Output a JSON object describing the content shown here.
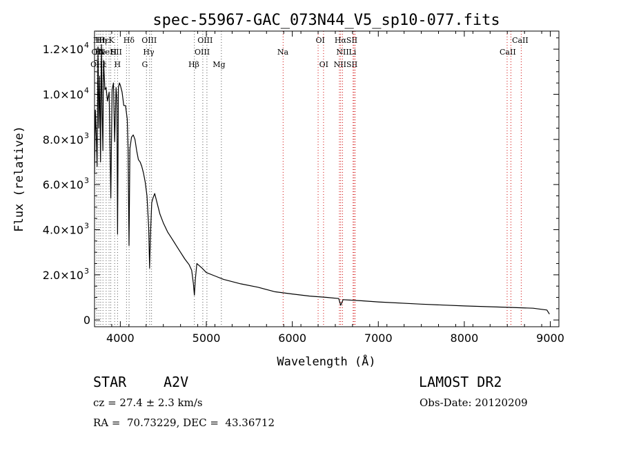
{
  "chart_data": {
    "type": "line",
    "title": "spec-55967-GAC_073N44_V5_sp10-077.fits",
    "xlabel": "Wavelength (Å)",
    "ylabel": "Flux (relative)",
    "xlim": [
      3700,
      9100
    ],
    "ylim": [
      -300,
      12800
    ],
    "x_ticks": [
      4000,
      5000,
      6000,
      7000,
      8000,
      9000
    ],
    "x_tick_labels": [
      "4000",
      "5000",
      "6000",
      "7000",
      "8000",
      "9000"
    ],
    "y_ticks": [
      {
        "value": 0,
        "mant": "0",
        "exp": ""
      },
      {
        "value": 2000,
        "mant": "2.0×10",
        "exp": "3"
      },
      {
        "value": 4000,
        "mant": "4.0×10",
        "exp": "3"
      },
      {
        "value": 6000,
        "mant": "6.0×10",
        "exp": "3"
      },
      {
        "value": 8000,
        "mant": "8.0×10",
        "exp": "3"
      },
      {
        "value": 10000,
        "mant": "1.0×10",
        "exp": "4"
      },
      {
        "value": 12000,
        "mant": "1.2×10",
        "exp": "4"
      }
    ],
    "series": [
      {
        "x": [
          3700,
          3710,
          3720,
          3730,
          3740,
          3750,
          3760,
          3770,
          3780,
          3790,
          3797,
          3805,
          3820,
          3835,
          3850,
          3870,
          3889,
          3905,
          3920,
          3934,
          3950,
          3960,
          3968,
          3978,
          3990,
          4000,
          4020,
          4040,
          4060,
          4080,
          4090,
          4101,
          4112,
          4130,
          4150,
          4170,
          4190,
          4210,
          4230,
          4250,
          4270,
          4290,
          4310,
          4330,
          4340,
          4350,
          4365,
          4380,
          4400,
          4420,
          4440,
          4460,
          4480,
          4500,
          4550,
          4600,
          4650,
          4700,
          4750,
          4800,
          4830,
          4850,
          4861,
          4872,
          4890,
          4920,
          4950,
          5000,
          5100,
          5200,
          5400,
          5600,
          5800,
          6000,
          6200,
          6400,
          6540,
          6563,
          6590,
          6800,
          7000,
          7500,
          8000,
          8500,
          8800,
          8960,
          8990
        ],
        "y": [
          6500,
          9300,
          8200,
          6800,
          12100,
          8500,
          10800,
          7000,
          12200,
          9000,
          7500,
          11500,
          10200,
          10300,
          9700,
          10100,
          5400,
          10200,
          10500,
          7900,
          10300,
          9800,
          3800,
          10300,
          10500,
          10400,
          10100,
          9500,
          9500,
          8900,
          7600,
          3300,
          7600,
          8100,
          8200,
          8000,
          7500,
          7100,
          7000,
          6800,
          6500,
          6100,
          5500,
          4100,
          2300,
          3700,
          5200,
          5400,
          5600,
          5300,
          5000,
          4700,
          4500,
          4300,
          3900,
          3600,
          3300,
          3000,
          2700,
          2450,
          2200,
          1600,
          1100,
          1800,
          2500,
          2400,
          2300,
          2100,
          1950,
          1800,
          1600,
          1450,
          1250,
          1150,
          1060,
          1000,
          950,
          650,
          900,
          850,
          800,
          700,
          620,
          560,
          520,
          440,
          260
        ]
      }
    ],
    "lines": [
      {
        "x": 3727,
        "top": "OII",
        "bottom": "OII"
      },
      {
        "x": 3750,
        "top": "Hθ",
        "bottom": "OIII"
      },
      {
        "x": 3771,
        "top": "Hη",
        "bottom": "OIII"
      },
      {
        "x": 3798,
        "top": "Hζ",
        "bottom": "Hη"
      },
      {
        "x": 3835,
        "top": "Hε",
        "bottom": "Hε"
      },
      {
        "x": 3869,
        "top": "NeIII",
        "bottom": "NeIII"
      },
      {
        "x": 3889,
        "top": "HeI",
        "bottom": "HeI"
      },
      {
        "x": 3934,
        "top": "K",
        "bottom": "K"
      },
      {
        "x": 3968,
        "top": "H",
        "bottom": "H"
      },
      {
        "x": 4072,
        "top": "SII",
        "bottom": "SII"
      },
      {
        "x": 4102,
        "top": "Hδ",
        "bottom": "Hδ"
      },
      {
        "x": 4304,
        "top": "G",
        "bottom": "G"
      },
      {
        "x": 4341,
        "top": "Hγ",
        "bottom": "Hγ"
      },
      {
        "x": 4363,
        "top": "OIII",
        "bottom": "OIII"
      },
      {
        "x": 4861,
        "top": "Hβ",
        "bottom": "Hβ"
      },
      {
        "x": 4959,
        "top": "OIII",
        "bottom": "OIII"
      },
      {
        "x": 5007,
        "top": "OIII",
        "bottom": "OIII"
      },
      {
        "x": 5175,
        "top": "Mg",
        "bottom": "Mg"
      },
      {
        "x": 5893,
        "top": "Na",
        "bottom": "Na"
      },
      {
        "x": 6300,
        "top": "OI",
        "bottom": "OI"
      },
      {
        "x": 6363,
        "top": "OI",
        "bottom": "OI"
      },
      {
        "x": 6548,
        "top": "NII",
        "bottom": "NII"
      },
      {
        "x": 6563,
        "top": "Hα",
        "bottom": "Hα"
      },
      {
        "x": 6584,
        "top": "NII",
        "bottom": "NII"
      },
      {
        "x": 6707,
        "top": "Li",
        "bottom": "Li"
      },
      {
        "x": 6717,
        "top": "SII",
        "bottom": "SII"
      },
      {
        "x": 6731,
        "top": "SII",
        "bottom": "SII"
      },
      {
        "x": 8498,
        "top": "CaII",
        "bottom": "CaII"
      },
      {
        "x": 8542,
        "top": "CaII",
        "bottom": "CaII"
      },
      {
        "x": 8662,
        "top": "CaII",
        "bottom": "CaII"
      }
    ],
    "line_labels": [
      {
        "text": "Hθ",
        "x": 3748,
        "row": 0
      },
      {
        "text": "OII",
        "x": 3735,
        "row": 1
      },
      {
        "text": "OIII",
        "x": 3741,
        "row": 2
      },
      {
        "text": "Hη",
        "x": 3775,
        "row": 0
      },
      {
        "text": "Hε",
        "x": 3810,
        "row": 0
      },
      {
        "text": "He",
        "x": 3768,
        "row": 1
      },
      {
        "text": "Hε",
        "x": 3779,
        "row": 2
      },
      {
        "text": "NeI",
        "x": 3830,
        "row": 1
      },
      {
        "text": "K",
        "x": 3896,
        "row": 0
      },
      {
        "text": "H",
        "x": 3920,
        "row": 1
      },
      {
        "text": "SII",
        "x": 3955,
        "row": 1
      },
      {
        "text": "H",
        "x": 3967,
        "row": 2
      },
      {
        "text": "Hδ",
        "x": 4100,
        "row": 0
      },
      {
        "text": "OIII",
        "x": 4336,
        "row": 0
      },
      {
        "text": "Hγ",
        "x": 4330,
        "row": 1
      },
      {
        "text": "G",
        "x": 4285,
        "row": 2
      },
      {
        "text": "OIII",
        "x": 4986,
        "row": 0
      },
      {
        "text": "OIII",
        "x": 4952,
        "row": 1
      },
      {
        "text": "Hβ",
        "x": 4855,
        "row": 2
      },
      {
        "text": "Mg",
        "x": 5148,
        "row": 2
      },
      {
        "text": "Na",
        "x": 5890,
        "row": 1
      },
      {
        "text": "OI",
        "x": 6325,
        "row": 0
      },
      {
        "text": "OI",
        "x": 6366,
        "row": 2
      },
      {
        "text": "HαSII",
        "x": 6625,
        "row": 0
      },
      {
        "text": "NII",
        "x": 6585,
        "row": 1
      },
      {
        "text": "Li",
        "x": 6700,
        "row": 1
      },
      {
        "text": "NIISII",
        "x": 6620,
        "row": 2
      },
      {
        "text": "CaII",
        "x": 8650,
        "row": 0
      },
      {
        "text": "CaII",
        "x": 8505,
        "row": 1
      }
    ]
  },
  "info": {
    "object_class": "STAR",
    "subclass": "A2V",
    "survey": "LAMOST DR2",
    "redshift": "cz = 27.4 ± 2.3 km/s",
    "obs_date": "Obs-Date: 20120209",
    "coords": "RA =  70.73229, DEC =  43.36712"
  }
}
